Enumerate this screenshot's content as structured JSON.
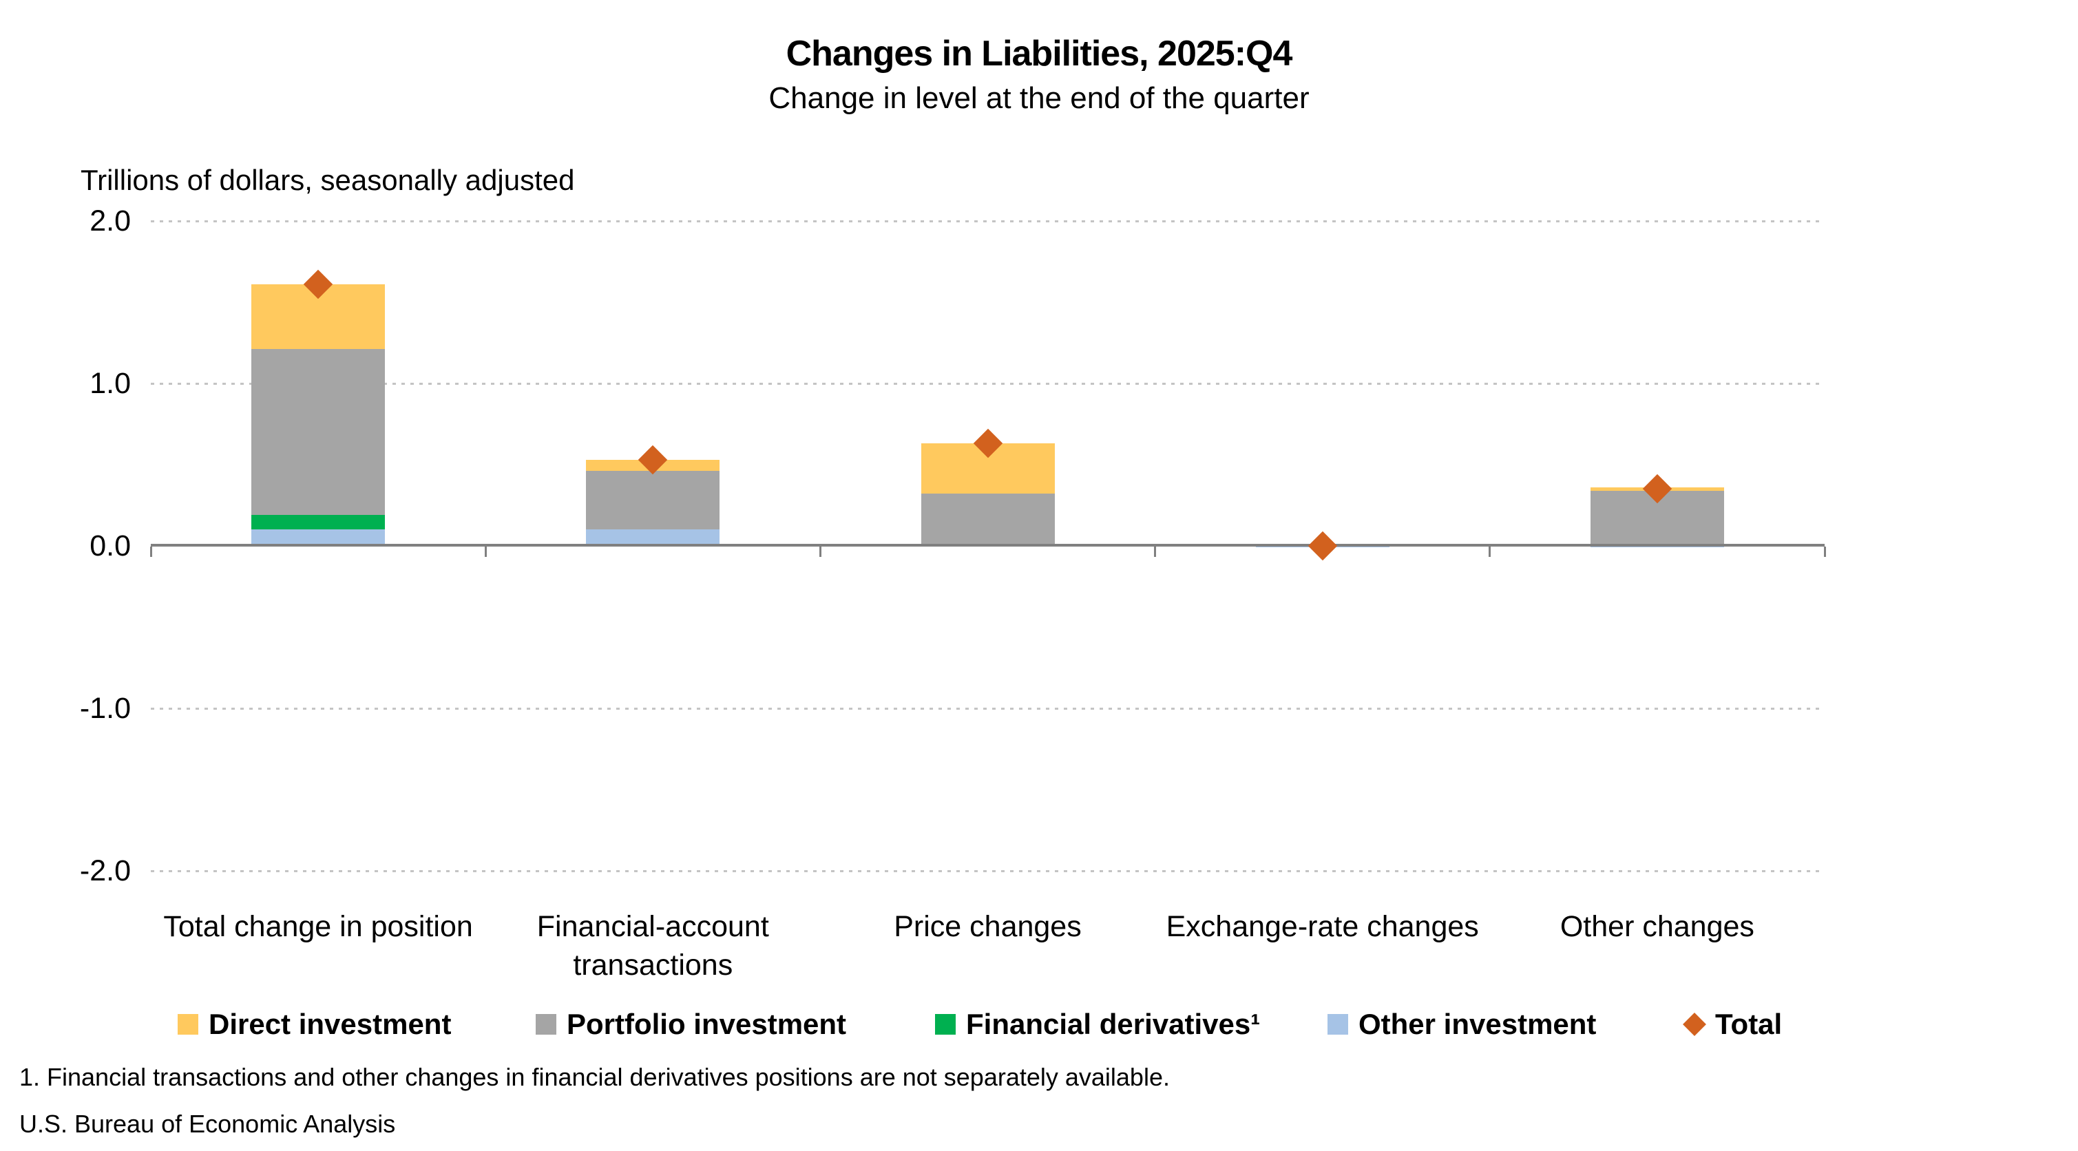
{
  "chart_data": {
    "type": "bar",
    "stacked": true,
    "title": "Changes in Liabilities, 2025:Q4",
    "subtitle": "Change in level at the end of the quarter",
    "units_label": "Trillions of dollars, seasonally adjusted",
    "ylim": [
      -2.0,
      2.0
    ],
    "yticks": [
      {
        "label": "2.0",
        "value": 2.0
      },
      {
        "label": "1.0",
        "value": 1.0
      },
      {
        "label": "0.0",
        "value": 0.0
      },
      {
        "label": "-1.0",
        "value": -1.0
      },
      {
        "label": "-2.0",
        "value": -2.0
      }
    ],
    "grid": {
      "horizontal_dotted_at": [
        2.0,
        1.0,
        -1.0,
        -2.0
      ]
    },
    "categories": [
      "Total change in position",
      "Financial-account transactions",
      "Price changes",
      "Exchange-rate changes",
      "Other changes"
    ],
    "series": [
      {
        "name": "Other investment",
        "color": "#A6C3E6",
        "values": [
          0.1,
          0.1,
          0.0,
          -0.01,
          -0.01
        ]
      },
      {
        "name": "Financial derivatives¹",
        "color": "#00B050",
        "values": [
          0.09,
          0.0,
          0.0,
          0.0,
          0.0
        ]
      },
      {
        "name": "Portfolio investment",
        "color": "#A5A5A5",
        "values": [
          1.02,
          0.36,
          0.32,
          0.0,
          0.34
        ]
      },
      {
        "name": "Direct investment",
        "color": "#FFC95E",
        "values": [
          0.4,
          0.07,
          0.31,
          0.0,
          0.02
        ]
      }
    ],
    "totals": {
      "name": "Total",
      "marker": "diamond",
      "color": "#D2611E",
      "values": [
        1.61,
        0.53,
        0.63,
        0.0,
        0.35
      ]
    },
    "legend_position": "bottom",
    "legend": [
      {
        "label": "Direct investment",
        "swatch": "square",
        "color": "#FFC95E"
      },
      {
        "label": "Portfolio investment",
        "swatch": "square",
        "color": "#A5A5A5"
      },
      {
        "label": "Financial derivatives¹",
        "swatch": "square",
        "color": "#00B050"
      },
      {
        "label": "Other investment",
        "swatch": "square",
        "color": "#A6C3E6"
      },
      {
        "label": "Total",
        "swatch": "diamond",
        "color": "#D2611E"
      }
    ],
    "footnote": "1. Financial transactions and other changes in financial derivatives positions are not separately available.",
    "source": "U.S. Bureau of Economic Analysis",
    "axis_color": "#808080",
    "grid_color": "#C4C4C4"
  }
}
